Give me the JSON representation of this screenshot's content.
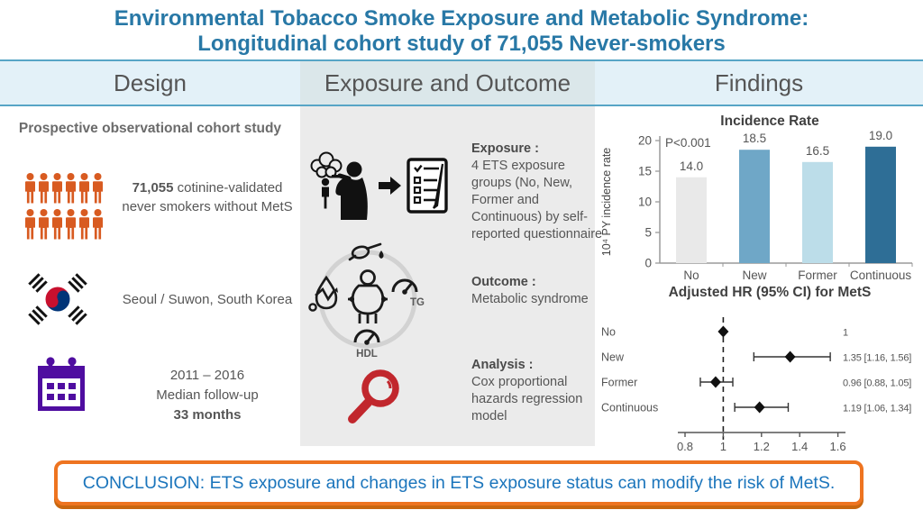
{
  "title": {
    "line1": "Environmental Tobacco Smoke Exposure and Metabolic Syndrome:",
    "line2": "Longitudinal cohort study of 71,055 Never-smokers"
  },
  "header": {
    "design": "Design",
    "exposure_outcome": "Exposure and Outcome",
    "findings": "Findings"
  },
  "design": {
    "study_type": "Prospective observational cohort study",
    "cohort_bold": "71,055",
    "cohort_rest": " cotinine-validated never smokers without MetS",
    "location": "Seoul / Suwon, South Korea",
    "period": "2011 – 2016",
    "followup_label": "Median follow-up",
    "followup_bold": "33 months",
    "icons": {
      "people": "people-cohort-icon",
      "flag": "south-korea-flag-icon",
      "calendar": "calendar-icon"
    }
  },
  "exposure_outcome": {
    "exposure_heading": "Exposure :",
    "exposure_text": "4 ETS exposure groups (No, New, Former and Continuous) by self-reported questionnaire",
    "outcome_heading": "Outcome :",
    "outcome_text": "Metabolic syndrome",
    "analysis_heading": "Analysis :",
    "analysis_text": "Cox proportional hazards regression model",
    "mets_icon_labels": {
      "tg": "TG",
      "hdl": "HDL"
    },
    "icons": {
      "exposure": "secondhand-smoke-icon",
      "arrow": "arrow-right-icon",
      "questionnaire": "questionnaire-checklist-icon",
      "outcome": "metabolic-syndrome-icon",
      "analysis": "magnifier-icon"
    }
  },
  "chart_data": [
    {
      "type": "bar",
      "title": "Incidence Rate",
      "categories": [
        "No",
        "New",
        "Former",
        "Continuous"
      ],
      "values": [
        14.0,
        18.5,
        16.5,
        19.0
      ],
      "value_labels": [
        "14.0",
        "18.5",
        "16.5",
        "19.0"
      ],
      "bar_colors": [
        "#e9e9e9",
        "#6fa7c7",
        "#bcdde9",
        "#2e6e96"
      ],
      "xlabel": "",
      "ylabel": "10⁴ PY incidence rate",
      "ylim": [
        0,
        20
      ],
      "yticks": [
        0,
        5,
        10,
        15,
        20
      ],
      "annotation": "P<0.001",
      "grid": false
    },
    {
      "type": "forest",
      "title": "Adjusted HR (95% CI) for MetS",
      "rows": [
        {
          "label": "No",
          "hr": 1.0,
          "lo": null,
          "hi": null,
          "text": "1"
        },
        {
          "label": "New",
          "hr": 1.35,
          "lo": 1.16,
          "hi": 1.56,
          "text": "1.35 [1.16, 1.56]"
        },
        {
          "label": "Former",
          "hr": 0.96,
          "lo": 0.88,
          "hi": 1.05,
          "text": "0.96 [0.88, 1.05]"
        },
        {
          "label": "Continuous",
          "hr": 1.19,
          "lo": 1.06,
          "hi": 1.34,
          "text": "1.19 [1.06, 1.34]"
        }
      ],
      "xlim": [
        0.8,
        1.6
      ],
      "xticks": [
        0.8,
        1,
        1.2,
        1.4,
        1.6
      ],
      "ref_line": 1
    }
  ],
  "conclusion": {
    "text": "CONCLUSION: ETS exposure and changes in ETS exposure status can modify the risk of MetS."
  },
  "colors": {
    "title_blue": "#2878a6",
    "band_line": "#57a5c6",
    "accent_orange": "#ee7420",
    "conclusion_blue": "#1b75bc",
    "people_orange": "#d85b21",
    "calendar_purple": "#4f0da0",
    "magnifier_red": "#c1272d",
    "bar_no": "#e9e9e9",
    "bar_new": "#6fa7c7",
    "bar_former": "#bcdde9",
    "bar_continuous": "#2e6e96"
  }
}
